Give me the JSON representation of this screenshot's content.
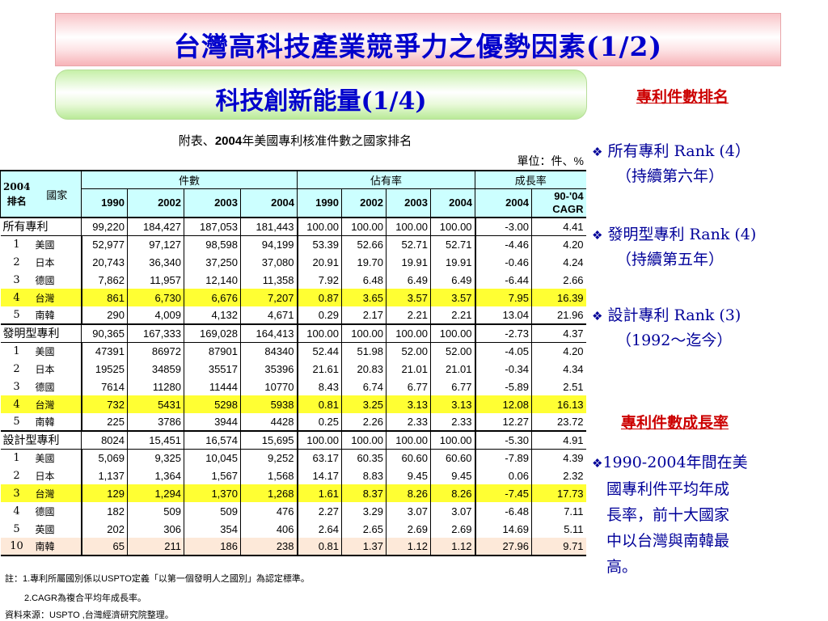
{
  "header": {
    "title": "台灣高科技產業競爭力之優勢因素(1/2)"
  },
  "subheader": {
    "title": "科技創新能量(1/4)"
  },
  "table": {
    "title_prefix": "附表、",
    "title_bold": "2004",
    "title_suffix": "年美國專利核准件數之國家排名",
    "unit": "單位：件、%",
    "head": {
      "rank_label_1": "2004",
      "rank_label_2": "排名",
      "country_label": "國家",
      "group_count": "件數",
      "group_share": "佔有率",
      "group_growth": "成長率",
      "years": [
        "1990",
        "2002",
        "2003",
        "2004",
        "1990",
        "2002",
        "2003",
        "2004",
        "2004"
      ],
      "cagr_1": "90-'04",
      "cagr_2": "CAGR"
    },
    "sections": [
      {
        "total": [
          "所有專利",
          "99,220",
          "184,427",
          "187,053",
          "181,443",
          "100.00",
          "100.00",
          "100.00",
          "100.00",
          "-3.00",
          "4.41"
        ],
        "rows": [
          [
            "1",
            "美國",
            "52,977",
            "97,127",
            "98,598",
            "94,199",
            "53.39",
            "52.66",
            "52.71",
            "52.71",
            "-4.46",
            "4.20"
          ],
          [
            "2",
            "日本",
            "20,743",
            "36,340",
            "37,250",
            "37,080",
            "20.91",
            "19.70",
            "19.91",
            "19.91",
            "-0.46",
            "4.24"
          ],
          [
            "3",
            "德國",
            "7,862",
            "11,957",
            "12,140",
            "11,358",
            "7.92",
            "6.48",
            "6.49",
            "6.49",
            "-6.44",
            "2.66"
          ],
          [
            "4",
            "台灣",
            "861",
            "6,730",
            "6,676",
            "7,207",
            "0.87",
            "3.65",
            "3.57",
            "3.57",
            "7.95",
            "16.39"
          ],
          [
            "5",
            "南韓",
            "290",
            "4,009",
            "4,132",
            "4,671",
            "0.29",
            "2.17",
            "2.21",
            "2.21",
            "13.04",
            "21.96"
          ]
        ]
      },
      {
        "total": [
          "發明型專利",
          "90,365",
          "167,333",
          "169,028",
          "164,413",
          "100.00",
          "100.00",
          "100.00",
          "100.00",
          "-2.73",
          "4.37"
        ],
        "rows": [
          [
            "1",
            "美國",
            "47391",
            "86972",
            "87901",
            "84340",
            "52.44",
            "51.98",
            "52.00",
            "52.00",
            "-4.05",
            "4.20"
          ],
          [
            "2",
            "日本",
            "19525",
            "34859",
            "35517",
            "35396",
            "21.61",
            "20.83",
            "21.01",
            "21.01",
            "-0.34",
            "4.34"
          ],
          [
            "3",
            "德國",
            "7614",
            "11280",
            "11444",
            "10770",
            "8.43",
            "6.74",
            "6.77",
            "6.77",
            "-5.89",
            "2.51"
          ],
          [
            "4",
            "台灣",
            "732",
            "5431",
            "5298",
            "5938",
            "0.81",
            "3.25",
            "3.13",
            "3.13",
            "12.08",
            "16.13"
          ],
          [
            "5",
            "南韓",
            "225",
            "3786",
            "3944",
            "4428",
            "0.25",
            "2.26",
            "2.33",
            "2.33",
            "12.27",
            "23.72"
          ]
        ]
      },
      {
        "total": [
          "設計型專利",
          "8024",
          "15,451",
          "16,574",
          "15,695",
          "100.00",
          "100.00",
          "100.00",
          "100.00",
          "-5.30",
          "4.91"
        ],
        "rows": [
          [
            "1",
            "美國",
            "5,069",
            "9,325",
            "10,045",
            "9,252",
            "63.17",
            "60.35",
            "60.60",
            "60.60",
            "-7.89",
            "4.39"
          ],
          [
            "2",
            "日本",
            "1,137",
            "1,364",
            "1,567",
            "1,568",
            "14.17",
            "8.83",
            "9.45",
            "9.45",
            "0.06",
            "2.32"
          ],
          [
            "3",
            "台灣",
            "129",
            "1,294",
            "1,370",
            "1,268",
            "1.61",
            "8.37",
            "8.26",
            "8.26",
            "-7.45",
            "17.73"
          ],
          [
            "4",
            "德國",
            "182",
            "509",
            "509",
            "476",
            "2.27",
            "3.29",
            "3.07",
            "3.07",
            "-6.48",
            "7.11"
          ],
          [
            "5",
            "英國",
            "202",
            "306",
            "354",
            "406",
            "2.64",
            "2.65",
            "2.69",
            "2.69",
            "14.69",
            "5.11"
          ],
          [
            "10",
            "南韓",
            "65",
            "211",
            "186",
            "238",
            "0.81",
            "1.37",
            "1.12",
            "1.12",
            "27.96",
            "9.71"
          ]
        ]
      }
    ],
    "notes": {
      "note1": "註：1.專利所屬國別係以USPTO定義「以第一個發明人之國別」為認定標準。",
      "note2": "2.CAGR為複合平均年成長率。",
      "source": "資料來源：USPTO ,台灣經濟研究院整理。"
    }
  },
  "sidebar": {
    "heading1": "專利件數排名",
    "bullets1": [
      {
        "line1": "所有專利 Rank (4）",
        "line2": "（持續第六年）"
      },
      {
        "line1": "發明型專利 Rank (4)",
        "line2": "（持續第五年）"
      },
      {
        "line1": "設計專利 Rank (3)",
        "line2": "（1992～迄今）"
      }
    ],
    "heading2": "專利件數成長率",
    "bullet2": {
      "line1": "1990-2004年間在美",
      "line2": "國專利件平均年成",
      "line3": "長率，前十大國家",
      "line4": "中以台灣與南韓最",
      "line5": "高。"
    },
    "bullet_icon": "diamond-bullet-icon"
  },
  "colors": {
    "title_blue": "#0000cc",
    "heading_red": "#cc0000",
    "header_cyan": "#ccffff",
    "highlight_yellow": "#ffff33",
    "highlight_peach": "#fde9d9"
  }
}
